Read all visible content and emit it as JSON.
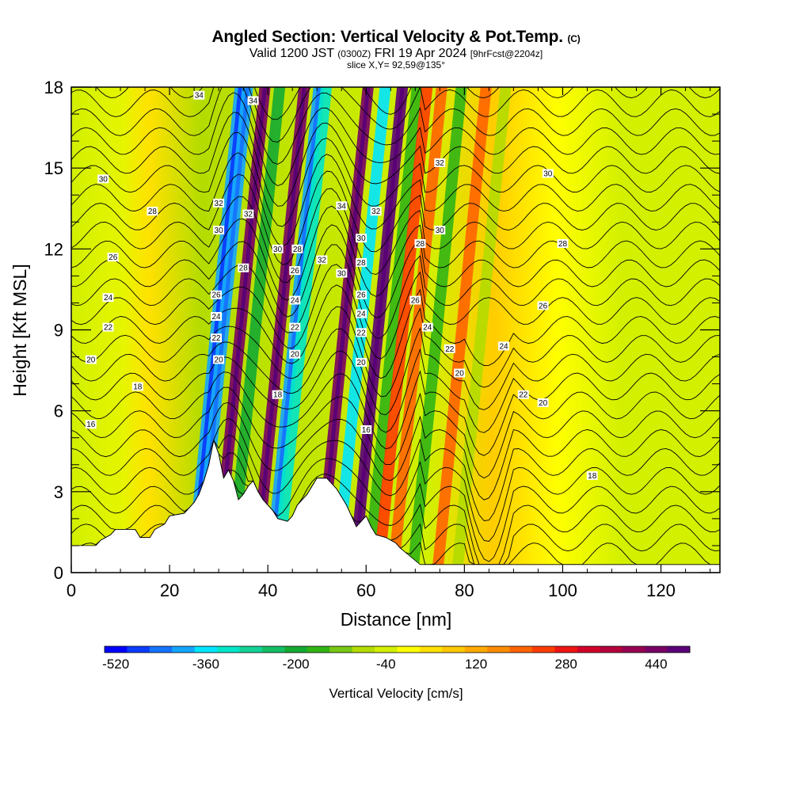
{
  "header": {
    "title": "Angled Section: Vertical Velocity & Pot.Temp.",
    "title_mark": "(C)",
    "valid_prefix": "Valid 1200 JST",
    "valid_utc": "(0300Z)",
    "valid_date": "FRI 19 Apr 2024",
    "forecast": "[9hrFcst@2204z]",
    "slice": "slice X,Y= 92,59@135°"
  },
  "colorbar": {
    "title": "Vertical Velocity [cm/s]",
    "labels": [
      "-520",
      "-360",
      "-200",
      "-40",
      "120",
      "280",
      "440"
    ],
    "colors": [
      "#0000ff",
      "#0a3cff",
      "#1473ff",
      "#14a5ff",
      "#00e6ff",
      "#00e6c8",
      "#14d296",
      "#14be64",
      "#14aa32",
      "#32b414",
      "#78c814",
      "#b4dc00",
      "#d2f000",
      "#ffff00",
      "#ffe100",
      "#ffc800",
      "#ffaa00",
      "#ff8c00",
      "#ff6400",
      "#ff3c00",
      "#f01414",
      "#d20028",
      "#b4003c",
      "#960050",
      "#780064",
      "#5a0078"
    ]
  },
  "chart_data": {
    "type": "heatmap",
    "title": "Angled Section: Vertical Velocity & Pot.Temp.",
    "xlabel": "Distance [nm]",
    "ylabel": "Height [Kft MSL]",
    "xlim": [
      0,
      132
    ],
    "ylim": [
      0,
      18
    ],
    "xticks": [
      0,
      20,
      40,
      60,
      80,
      100,
      120
    ],
    "yticks": [
      0,
      3,
      6,
      9,
      12,
      15,
      18
    ],
    "color_quantity": "Vertical Velocity [cm/s]",
    "color_range": [
      -520,
      520
    ],
    "contour_quantity": "Pot.Temp. (C)",
    "terrain": [
      [
        0,
        1
      ],
      [
        5,
        1
      ],
      [
        6,
        1.2
      ],
      [
        8,
        1.4
      ],
      [
        9,
        1.6
      ],
      [
        13,
        1.6
      ],
      [
        14,
        1.3
      ],
      [
        16,
        1.3
      ],
      [
        17,
        1.6
      ],
      [
        19,
        1.8
      ],
      [
        20,
        2.1
      ],
      [
        23,
        2.2
      ],
      [
        24,
        2.4
      ],
      [
        25,
        2.6
      ],
      [
        26,
        2.9
      ],
      [
        27,
        3.4
      ],
      [
        28,
        4
      ],
      [
        29,
        4.9
      ],
      [
        30,
        4.4
      ],
      [
        31,
        3.5
      ],
      [
        32,
        3.8
      ],
      [
        33,
        3.4
      ],
      [
        34,
        2.7
      ],
      [
        35,
        2.9
      ],
      [
        36,
        3.2
      ],
      [
        37,
        3.4
      ],
      [
        38,
        3
      ],
      [
        39,
        2.7
      ],
      [
        40,
        2.5
      ],
      [
        41,
        2.3
      ],
      [
        42,
        2
      ],
      [
        44,
        1.9
      ],
      [
        45,
        2.1
      ],
      [
        46,
        2.5
      ],
      [
        47,
        2.7
      ],
      [
        48,
        2.9
      ],
      [
        49,
        3.2
      ],
      [
        50,
        3.5
      ],
      [
        52,
        3.5
      ],
      [
        53,
        3.3
      ],
      [
        54,
        3.1
      ],
      [
        55,
        2.8
      ],
      [
        56,
        2.5
      ],
      [
        57,
        2.1
      ],
      [
        58,
        1.7
      ],
      [
        60,
        2.1
      ],
      [
        61,
        1.7
      ],
      [
        62,
        1.4
      ],
      [
        64,
        1.3
      ],
      [
        66,
        1.1
      ],
      [
        67,
        0.9
      ],
      [
        69,
        0.6
      ],
      [
        71,
        0.3
      ],
      [
        132,
        0.3
      ]
    ],
    "bands": [
      {
        "x": 30,
        "w": -400
      },
      {
        "x": 31.5,
        "w": -380
      },
      {
        "x": 35,
        "w": 440
      },
      {
        "x": 38,
        "w": -180
      },
      {
        "x": 43,
        "w": 470
      },
      {
        "x": 46,
        "w": -380
      },
      {
        "x": 47.5,
        "w": -300
      },
      {
        "x": 56,
        "w": 460
      },
      {
        "x": 59.5,
        "w": -330
      },
      {
        "x": 63,
        "w": 480
      },
      {
        "x": 66,
        "w": -140
      },
      {
        "x": 68,
        "w": 260
      },
      {
        "x": 71,
        "w": 200
      },
      {
        "x": 75,
        "w": -160
      },
      {
        "x": 80,
        "w": 200
      },
      {
        "x": 84,
        "w": -80
      }
    ],
    "contour_labels": [
      {
        "x": 26,
        "y": 17.7,
        "v": "34"
      },
      {
        "x": 37,
        "y": 17.5,
        "v": "34"
      },
      {
        "x": 6.5,
        "y": 14.6,
        "v": "30"
      },
      {
        "x": 16.5,
        "y": 13.4,
        "v": "28"
      },
      {
        "x": 8.5,
        "y": 11.7,
        "v": "26"
      },
      {
        "x": 7.5,
        "y": 10.2,
        "v": "24"
      },
      {
        "x": 7.5,
        "y": 9.1,
        "v": "22"
      },
      {
        "x": 4,
        "y": 7.9,
        "v": "20"
      },
      {
        "x": 13.5,
        "y": 6.9,
        "v": "18"
      },
      {
        "x": 4,
        "y": 5.5,
        "v": "16"
      },
      {
        "x": 30,
        "y": 13.7,
        "v": "32"
      },
      {
        "x": 30,
        "y": 12.7,
        "v": "30"
      },
      {
        "x": 36,
        "y": 13.3,
        "v": "32"
      },
      {
        "x": 35,
        "y": 11.3,
        "v": "28"
      },
      {
        "x": 29.5,
        "y": 10.3,
        "v": "26"
      },
      {
        "x": 29.5,
        "y": 9.5,
        "v": "24"
      },
      {
        "x": 29.5,
        "y": 8.7,
        "v": "22"
      },
      {
        "x": 30,
        "y": 7.9,
        "v": "20"
      },
      {
        "x": 42,
        "y": 12,
        "v": "30"
      },
      {
        "x": 46,
        "y": 12,
        "v": "28"
      },
      {
        "x": 45.5,
        "y": 11.2,
        "v": "26"
      },
      {
        "x": 45.5,
        "y": 10.1,
        "v": "24"
      },
      {
        "x": 45.5,
        "y": 9.1,
        "v": "22"
      },
      {
        "x": 45.5,
        "y": 8.1,
        "v": "20"
      },
      {
        "x": 42,
        "y": 6.6,
        "v": "18"
      },
      {
        "x": 55,
        "y": 13.6,
        "v": "34"
      },
      {
        "x": 62,
        "y": 13.4,
        "v": "32"
      },
      {
        "x": 51,
        "y": 11.6,
        "v": "32"
      },
      {
        "x": 59,
        "y": 12.4,
        "v": "30"
      },
      {
        "x": 59,
        "y": 11.5,
        "v": "28"
      },
      {
        "x": 55,
        "y": 11.1,
        "v": "30"
      },
      {
        "x": 59,
        "y": 10.3,
        "v": "26"
      },
      {
        "x": 59,
        "y": 9.6,
        "v": "24"
      },
      {
        "x": 59,
        "y": 8.9,
        "v": "22"
      },
      {
        "x": 59,
        "y": 7.8,
        "v": "20"
      },
      {
        "x": 60,
        "y": 5.3,
        "v": "16"
      },
      {
        "x": 71,
        "y": 12.2,
        "v": "28"
      },
      {
        "x": 70,
        "y": 10.1,
        "v": "26"
      },
      {
        "x": 72.5,
        "y": 9.1,
        "v": "24"
      },
      {
        "x": 77,
        "y": 8.3,
        "v": "22"
      },
      {
        "x": 79,
        "y": 7.4,
        "v": "20"
      },
      {
        "x": 75,
        "y": 15.2,
        "v": "32"
      },
      {
        "x": 75,
        "y": 12.7,
        "v": "30"
      },
      {
        "x": 97,
        "y": 14.8,
        "v": "30"
      },
      {
        "x": 100,
        "y": 12.2,
        "v": "28"
      },
      {
        "x": 96,
        "y": 9.9,
        "v": "26"
      },
      {
        "x": 88,
        "y": 8.4,
        "v": "24"
      },
      {
        "x": 92,
        "y": 6.6,
        "v": "22"
      },
      {
        "x": 96,
        "y": 6.3,
        "v": "20"
      },
      {
        "x": 106,
        "y": 3.6,
        "v": "18"
      }
    ]
  }
}
